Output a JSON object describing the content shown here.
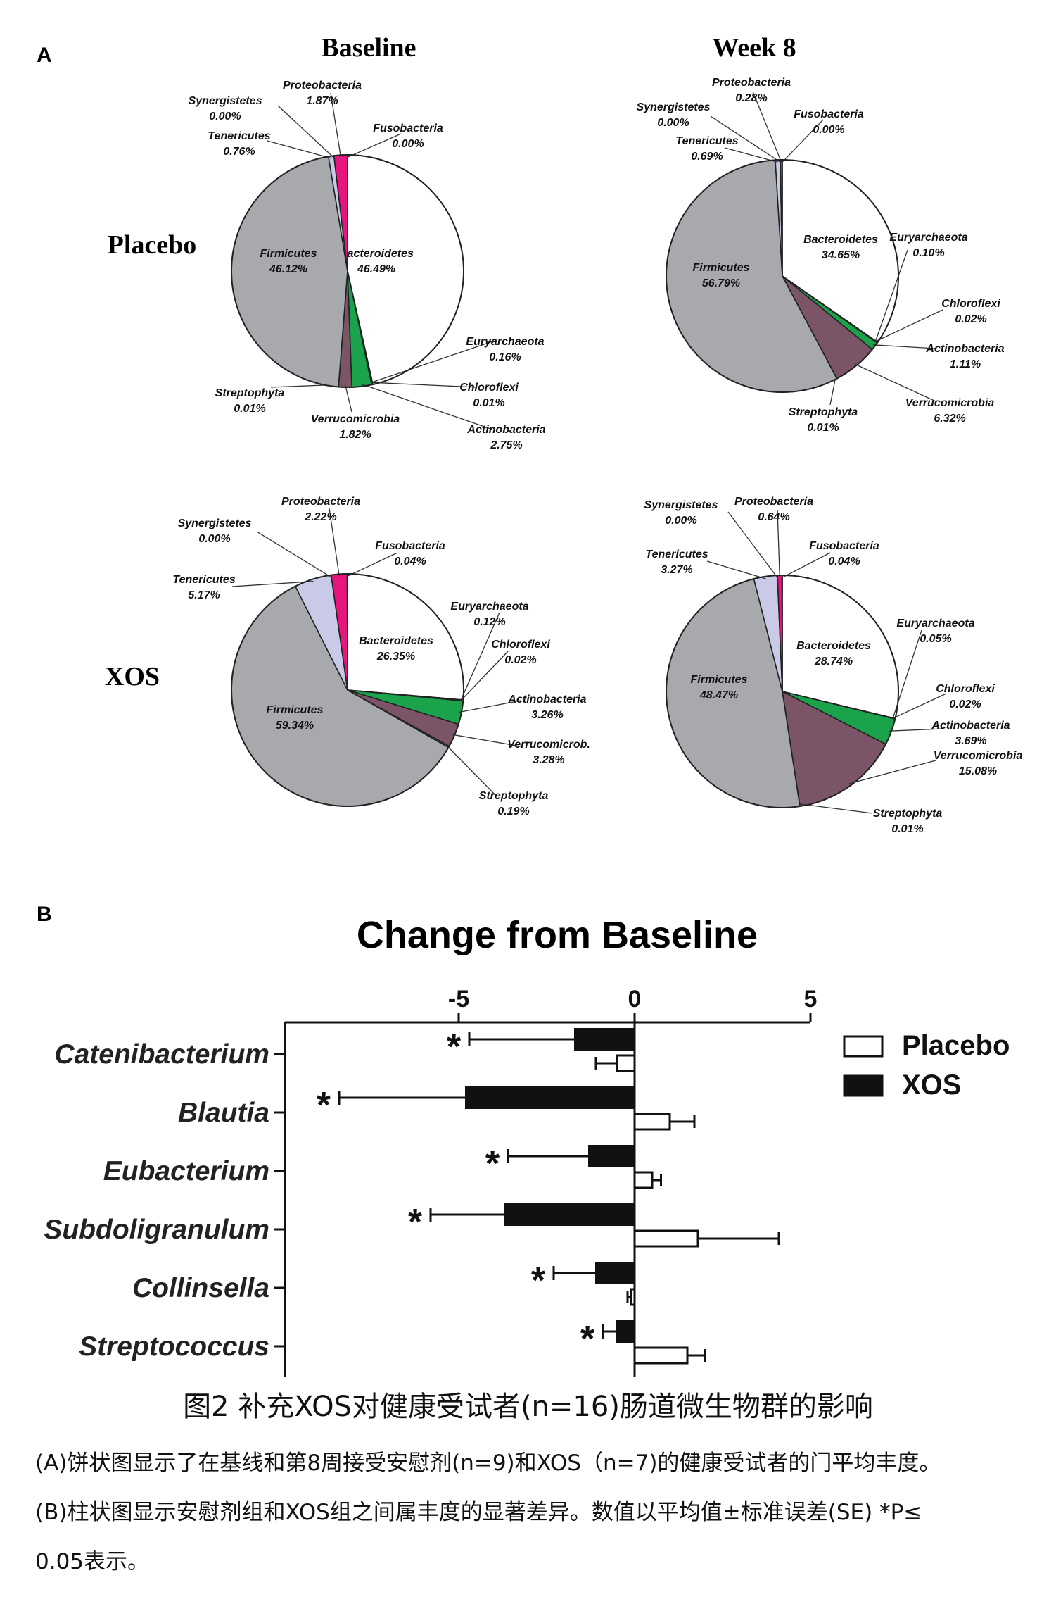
{
  "panel_labels": {
    "a": "A",
    "b": "B"
  },
  "columns": {
    "baseline": "Baseline",
    "week8": "Week 8"
  },
  "rows": {
    "placebo": "Placebo",
    "xos": "XOS"
  },
  "colors": {
    "Bacteroidetes": "#ffffff",
    "Euryarchaeota": "#d9a05b",
    "Chloroflexi": "#b03060",
    "Actinobacteria": "#1aa34a",
    "Verrucomicrobia": "#7b5468",
    "Streptophyta": "#c2a070",
    "Firmicutes": "#a7a9ac",
    "Tenericutes": "#c9c9e8",
    "Synergistetes": "#8fd0c8",
    "Proteobacteria": "#e8157f",
    "Fusobacteria": "#333333",
    "xos_bar": "#111111",
    "placebo_bar": "#ffffff"
  },
  "chart_data": [
    {
      "type": "pie",
      "id": "placebo-baseline",
      "slices": [
        {
          "label": "Bacteroidetes",
          "value": 46.49,
          "text": "46.49%"
        },
        {
          "label": "Euryarchaeota",
          "value": 0.16,
          "text": "0.16%"
        },
        {
          "label": "Chloroflexi",
          "value": 0.01,
          "text": "0.01%"
        },
        {
          "label": "Actinobacteria",
          "value": 2.75,
          "text": "2.75%"
        },
        {
          "label": "Verrucomicrobia",
          "value": 1.82,
          "text": "1.82%"
        },
        {
          "label": "Streptophyta",
          "value": 0.01,
          "text": "0.01%"
        },
        {
          "label": "Firmicutes",
          "value": 46.12,
          "text": "46.12%"
        },
        {
          "label": "Tenericutes",
          "value": 0.76,
          "text": "0.76%"
        },
        {
          "label": "Synergistetes",
          "value": 0.0,
          "text": "0.00%"
        },
        {
          "label": "Proteobacteria",
          "value": 1.87,
          "text": "1.87%"
        },
        {
          "label": "Fusobacteria",
          "value": 0.0,
          "text": "0.00%"
        }
      ]
    },
    {
      "type": "pie",
      "id": "placebo-week8",
      "slices": [
        {
          "label": "Bacteroidetes",
          "value": 34.65,
          "text": "34.65%"
        },
        {
          "label": "Euryarchaeota",
          "value": 0.1,
          "text": "0.10%"
        },
        {
          "label": "Chloroflexi",
          "value": 0.02,
          "text": "0.02%"
        },
        {
          "label": "Actinobacteria",
          "value": 1.11,
          "text": "1.11%"
        },
        {
          "label": "Verrucomicrobia",
          "value": 6.32,
          "text": "6.32%"
        },
        {
          "label": "Streptophyta",
          "value": 0.01,
          "text": "0.01%"
        },
        {
          "label": "Firmicutes",
          "value": 56.79,
          "text": "56.79%"
        },
        {
          "label": "Tenericutes",
          "value": 0.69,
          "text": "0.69%"
        },
        {
          "label": "Synergistetes",
          "value": 0.0,
          "text": "0.00%"
        },
        {
          "label": "Proteobacteria",
          "value": 0.28,
          "text": "0.28%"
        },
        {
          "label": "Fusobacteria",
          "value": 0.0,
          "text": "0.00%"
        }
      ]
    },
    {
      "type": "pie",
      "id": "xos-baseline",
      "slices": [
        {
          "label": "Bacteroidetes",
          "value": 26.35,
          "text": "26.35%"
        },
        {
          "label": "Euryarchaeota",
          "value": 0.12,
          "text": "0.12%"
        },
        {
          "label": "Chloroflexi",
          "value": 0.02,
          "text": "0.02%"
        },
        {
          "label": "Actinobacteria",
          "value": 3.26,
          "text": "3.26%"
        },
        {
          "label": "Verrucomicrob.",
          "color_key": "Verrucomicrobia",
          "value": 3.28,
          "text": "3.28%"
        },
        {
          "label": "Streptophyta",
          "value": 0.19,
          "text": "0.19%"
        },
        {
          "label": "Firmicutes",
          "value": 59.34,
          "text": "59.34%"
        },
        {
          "label": "Tenericutes",
          "value": 5.17,
          "text": "5.17%"
        },
        {
          "label": "Synergistetes",
          "value": 0.0,
          "text": "0.00%"
        },
        {
          "label": "Proteobacteria",
          "value": 2.22,
          "text": "2.22%"
        },
        {
          "label": "Fusobacteria",
          "value": 0.04,
          "text": "0.04%"
        }
      ]
    },
    {
      "type": "pie",
      "id": "xos-week8",
      "slices": [
        {
          "label": "Bacteroidetes",
          "value": 28.74,
          "text": "28.74%"
        },
        {
          "label": "Euryarchaeota",
          "value": 0.05,
          "text": "0.05%"
        },
        {
          "label": "Chloroflexi",
          "value": 0.02,
          "text": "0.02%"
        },
        {
          "label": "Actinobacteria",
          "value": 3.69,
          "text": "3.69%"
        },
        {
          "label": "Verrucomicrobia",
          "value": 15.08,
          "text": "15.08%"
        },
        {
          "label": "Streptophyta",
          "value": 0.01,
          "text": "0.01%"
        },
        {
          "label": "Firmicutes",
          "value": 48.47,
          "text": "48.47%"
        },
        {
          "label": "Tenericutes",
          "value": 3.27,
          "text": "3.27%"
        },
        {
          "label": "Synergistetes",
          "value": 0.0,
          "text": "0.00%"
        },
        {
          "label": "Proteobacteria",
          "value": 0.64,
          "text": "0.64%"
        },
        {
          "label": "Fusobacteria",
          "value": 0.04,
          "text": "0.04%"
        }
      ]
    },
    {
      "type": "bar",
      "orientation": "horizontal",
      "title": "Change from Baseline",
      "xlim": [
        -10,
        5
      ],
      "xticks": [
        -5,
        0,
        5
      ],
      "xtick_labels": [
        "-5",
        "0",
        "5"
      ],
      "axis_position": "top",
      "legend": "right",
      "categories": [
        "Catenibacterium",
        "Blautia",
        "Eubacterium",
        "Subdoligranulum",
        "Collinsella",
        "Streptococcus"
      ],
      "series": [
        {
          "name": "Placebo",
          "values": [
            -0.5,
            1.0,
            0.5,
            1.8,
            -0.1,
            1.5
          ],
          "errors": [
            0.6,
            0.7,
            0.25,
            2.3,
            0.1,
            0.5
          ]
        },
        {
          "name": "XOS",
          "values": [
            -1.7,
            -4.8,
            -1.3,
            -3.7,
            -1.1,
            -0.5
          ],
          "errors": [
            3.0,
            3.6,
            2.3,
            2.1,
            1.2,
            0.4
          ]
        }
      ],
      "significance": [
        "*",
        "*",
        "*",
        "*",
        "*",
        "*"
      ]
    }
  ],
  "caption": {
    "title": "图2 补充XOS对健康受试者(n=16)肠道微生物群的影响",
    "line1": "(A)饼状图显示了在基线和第8周接受安慰剂(n=9)和XOS（n=7)的健康受试者的门平均丰度。",
    "line2": "(B)柱状图显示安慰剂组和XOS组之间属丰度的显著差异。数值以平均值±标准误差(SE) *P≤",
    "line3": "0.05表示。"
  }
}
